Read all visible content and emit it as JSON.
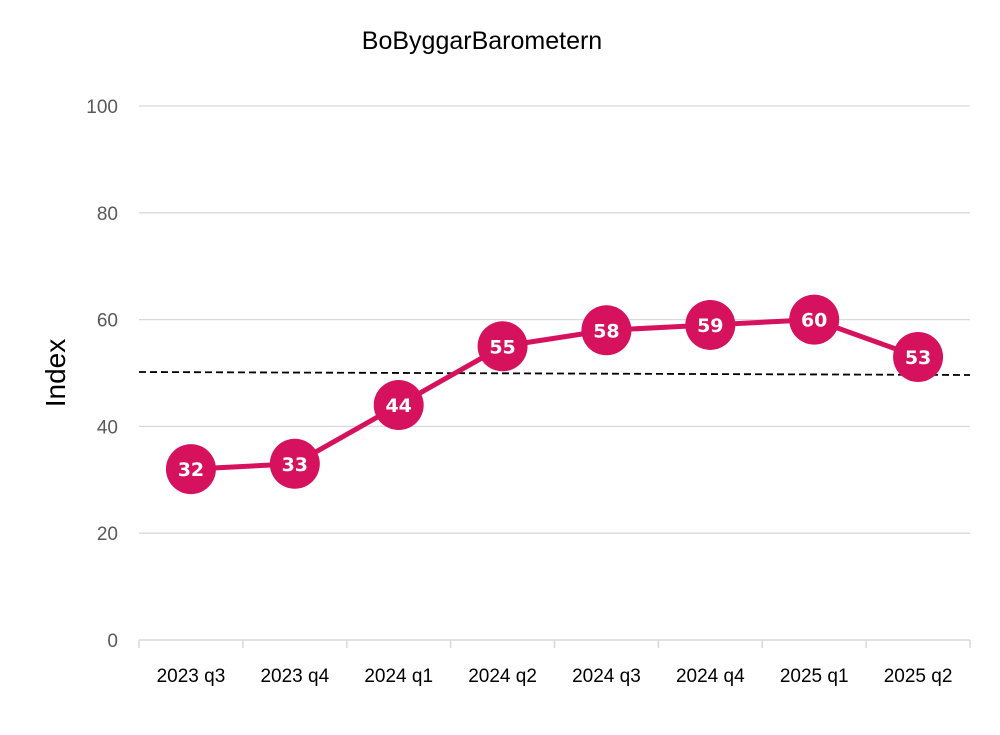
{
  "colors": {
    "series": "#D6125F",
    "grid": "#D9D9D9",
    "reference_line": "#000000",
    "label_text": "#FFFFFF"
  },
  "chart_data": {
    "type": "line",
    "title": "BoByggarBarometern",
    "xlabel": "",
    "ylabel": "Index",
    "ylim": [
      0,
      100
    ],
    "yticks": [
      0,
      20,
      40,
      60,
      80,
      100
    ],
    "grid": true,
    "legend": "none",
    "categories": [
      "2023 q3",
      "2023 q4",
      "2024 q1",
      "2024 q2",
      "2024 q3",
      "2024 q4",
      "2025 q1",
      "2025 q2"
    ],
    "series": [
      {
        "values": [
          32,
          33,
          44,
          55,
          58,
          59,
          60,
          53
        ],
        "data_labels": true
      }
    ],
    "reference_line": {
      "y": 50,
      "style": "dashed"
    }
  }
}
